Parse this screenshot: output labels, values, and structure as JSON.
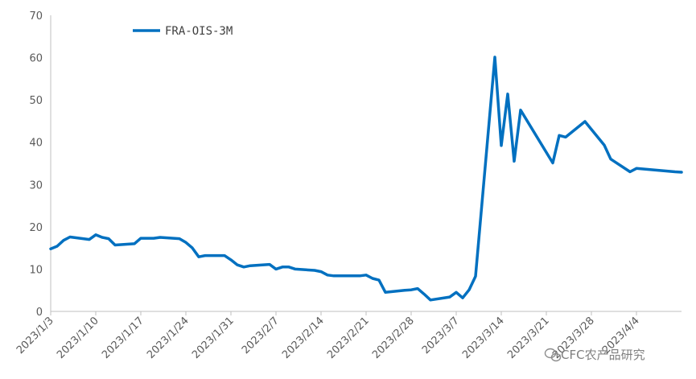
{
  "chart_data": {
    "type": "line",
    "title": "",
    "xlabel": "",
    "ylabel": "",
    "ylim": [
      0,
      70
    ],
    "yticks": [
      0,
      10,
      20,
      30,
      40,
      50,
      60,
      70
    ],
    "xticks": [
      "2023/1/3",
      "2023/1/10",
      "2023/1/17",
      "2023/1/24",
      "2023/1/31",
      "2023/2/7",
      "2023/2/14",
      "2023/2/21",
      "2023/2/28",
      "2023/3/7",
      "2023/3/14",
      "2023/3/21",
      "2023/3/28",
      "2023/4/4"
    ],
    "grid": false,
    "legend_position": "top-left",
    "series": [
      {
        "name": "FRA-OIS-3M",
        "color": "#0070C0",
        "points": [
          [
            "2023/1/3",
            14.8
          ],
          [
            "2023/1/4",
            15.4
          ],
          [
            "2023/1/5",
            16.8
          ],
          [
            "2023/1/6",
            17.6
          ],
          [
            "2023/1/9",
            17.0
          ],
          [
            "2023/1/10",
            18.1
          ],
          [
            "2023/1/11",
            17.5
          ],
          [
            "2023/1/12",
            17.2
          ],
          [
            "2023/1/13",
            15.7
          ],
          [
            "2023/1/16",
            16.0
          ],
          [
            "2023/1/17",
            17.3
          ],
          [
            "2023/1/18",
            17.3
          ],
          [
            "2023/1/19",
            17.3
          ],
          [
            "2023/1/20",
            17.5
          ],
          [
            "2023/1/23",
            17.2
          ],
          [
            "2023/1/24",
            16.3
          ],
          [
            "2023/1/25",
            15.0
          ],
          [
            "2023/1/26",
            12.9
          ],
          [
            "2023/1/27",
            13.2
          ],
          [
            "2023/1/30",
            13.2
          ],
          [
            "2023/1/31",
            12.2
          ],
          [
            "2023/2/1",
            11.0
          ],
          [
            "2023/2/2",
            10.5
          ],
          [
            "2023/2/3",
            10.8
          ],
          [
            "2023/2/6",
            11.1
          ],
          [
            "2023/2/7",
            10.0
          ],
          [
            "2023/2/8",
            10.5
          ],
          [
            "2023/2/9",
            10.5
          ],
          [
            "2023/2/10",
            10.0
          ],
          [
            "2023/2/13",
            9.7
          ],
          [
            "2023/2/14",
            9.4
          ],
          [
            "2023/2/15",
            8.6
          ],
          [
            "2023/2/16",
            8.4
          ],
          [
            "2023/2/17",
            8.4
          ],
          [
            "2023/2/20",
            8.4
          ],
          [
            "2023/2/21",
            8.6
          ],
          [
            "2023/2/22",
            7.8
          ],
          [
            "2023/2/23",
            7.4
          ],
          [
            "2023/2/24",
            4.5
          ],
          [
            "2023/2/27",
            5.0
          ],
          [
            "2023/2/28",
            5.1
          ],
          [
            "2023/3/1",
            5.4
          ],
          [
            "2023/3/2",
            4.1
          ],
          [
            "2023/3/3",
            2.7
          ],
          [
            "2023/3/6",
            3.4
          ],
          [
            "2023/3/7",
            4.5
          ],
          [
            "2023/3/8",
            3.2
          ],
          [
            "2023/3/9",
            5.1
          ],
          [
            "2023/3/10",
            8.3
          ],
          [
            "2023/3/13",
            60.1
          ],
          [
            "2023/3/14",
            39.2
          ],
          [
            "2023/3/15",
            51.4
          ],
          [
            "2023/3/16",
            35.5
          ],
          [
            "2023/3/17",
            47.6
          ],
          [
            "2023/3/22",
            35.1
          ],
          [
            "2023/3/23",
            41.6
          ],
          [
            "2023/3/24",
            41.2
          ],
          [
            "2023/3/27",
            44.9
          ],
          [
            "2023/3/30",
            39.3
          ],
          [
            "2023/3/31",
            36.0
          ],
          [
            "2023/4/3",
            33.0
          ],
          [
            "2023/4/4",
            33.8
          ],
          [
            "2023/4/10",
            33.0
          ],
          [
            "2023/4/11",
            32.9
          ]
        ]
      }
    ]
  },
  "watermark": {
    "text": "CFC农产品研究"
  }
}
